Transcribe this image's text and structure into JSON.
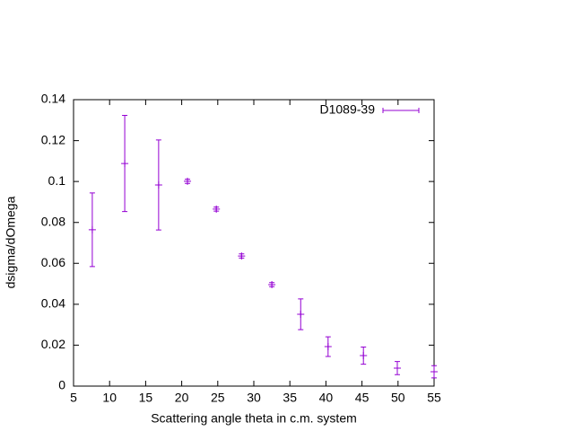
{
  "chart_data": {
    "type": "errorbar",
    "xlabel": "Scattering angle theta in c.m. system",
    "ylabel": "dsigma/dOmega",
    "xlim": [
      5,
      55
    ],
    "xticks": [
      5,
      10,
      15,
      20,
      25,
      30,
      35,
      40,
      45,
      50,
      55
    ],
    "ylim": [
      0,
      0.14
    ],
    "yticks": [
      0,
      0.02,
      0.04,
      0.06,
      0.08,
      0.1,
      0.12,
      0.14
    ],
    "legend": "top right",
    "series": [
      {
        "name": "D1089-39",
        "color": "#9400d3",
        "x": [
          7.6,
          12.1,
          16.8,
          20.8,
          24.8,
          28.3,
          32.5,
          36.5,
          40.3,
          45.2,
          49.9,
          55.0
        ],
        "values": [
          0.0764,
          0.1088,
          0.0983,
          0.1001,
          0.0865,
          0.0636,
          0.0496,
          0.0351,
          0.0193,
          0.0149,
          0.0088,
          0.007
        ],
        "errors": [
          0.018,
          0.0235,
          0.022,
          0.001,
          0.001,
          0.001,
          0.001,
          0.0075,
          0.0048,
          0.0042,
          0.0032,
          0.003
        ]
      }
    ]
  }
}
